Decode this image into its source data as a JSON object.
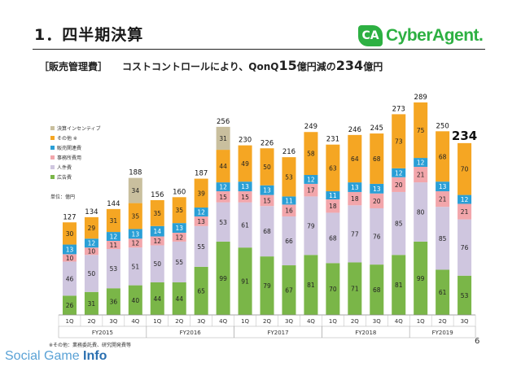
{
  "header": {
    "title": "1．四半期決算",
    "logo_mark": "CA",
    "logo_text": "CyberAgent."
  },
  "subtitle": {
    "bracket": "［販売管理費］",
    "pre": "コストコントロールにより、QonQ",
    "n1": "15",
    "mid": "億円減の",
    "n2": "234",
    "post": "億円"
  },
  "chart_data": {
    "type": "bar",
    "stacked": true,
    "unit_label": "単位：億円",
    "quarters": [
      "1Q",
      "2Q",
      "3Q",
      "4Q",
      "1Q",
      "2Q",
      "3Q",
      "4Q",
      "1Q",
      "2Q",
      "3Q",
      "4Q",
      "1Q",
      "2Q",
      "3Q",
      "4Q",
      "1Q",
      "2Q",
      "3Q"
    ],
    "years": [
      {
        "label": "FY2015",
        "start": 0,
        "count": 4
      },
      {
        "label": "FY2016",
        "start": 4,
        "count": 4
      },
      {
        "label": "FY2017",
        "start": 8,
        "count": 4
      },
      {
        "label": "FY2018",
        "start": 12,
        "count": 4
      },
      {
        "label": "FY2019",
        "start": 16,
        "count": 3
      }
    ],
    "totals": [
      127,
      134,
      144,
      188,
      156,
      160,
      187,
      256,
      230,
      226,
      216,
      249,
      231,
      246,
      245,
      273,
      289,
      250,
      234
    ],
    "series": [
      {
        "name": "広告費",
        "color": "#7ab648",
        "values": [
          26,
          31,
          36,
          40,
          44,
          44,
          65,
          99,
          91,
          79,
          67,
          81,
          70,
          71,
          68,
          81,
          99,
          61,
          53
        ]
      },
      {
        "name": "人件費",
        "color": "#cfc6df",
        "values": [
          46,
          50,
          53,
          51,
          50,
          55,
          55,
          53,
          61,
          68,
          66,
          79,
          68,
          77,
          76,
          85,
          80,
          85,
          76
        ]
      },
      {
        "name": "事務所費用",
        "color": "#f2a6ab",
        "values": [
          10,
          10,
          11,
          12,
          12,
          12,
          13,
          15,
          15,
          15,
          16,
          17,
          18,
          18,
          20,
          20,
          21,
          21,
          21
        ]
      },
      {
        "name": "販売関連費",
        "color": "#2a9fd6",
        "values": [
          13,
          12,
          12,
          13,
          14,
          13,
          12,
          12,
          13,
          13,
          11,
          12,
          11,
          13,
          13,
          12,
          12,
          13,
          12
        ]
      },
      {
        "name": "その他 ※",
        "color": "#f5a623",
        "values": [
          30,
          29,
          31,
          35,
          35,
          35,
          39,
          44,
          49,
          50,
          53,
          58,
          63,
          64,
          68,
          73,
          75,
          68,
          70
        ]
      },
      {
        "name": "決算インセンティブ",
        "color": "#c9bf9e",
        "values": [
          null,
          null,
          null,
          34,
          null,
          null,
          null,
          31,
          null,
          null,
          null,
          null,
          null,
          null,
          null,
          null,
          null,
          null,
          null
        ]
      }
    ],
    "ylim": [
      0,
      300
    ],
    "highlight_last_total": true
  },
  "footnote": "※その他：業務委託費、研究開発費等",
  "page_number": "6",
  "watermark": {
    "text1": "Social Game ",
    "text2": "Info"
  }
}
